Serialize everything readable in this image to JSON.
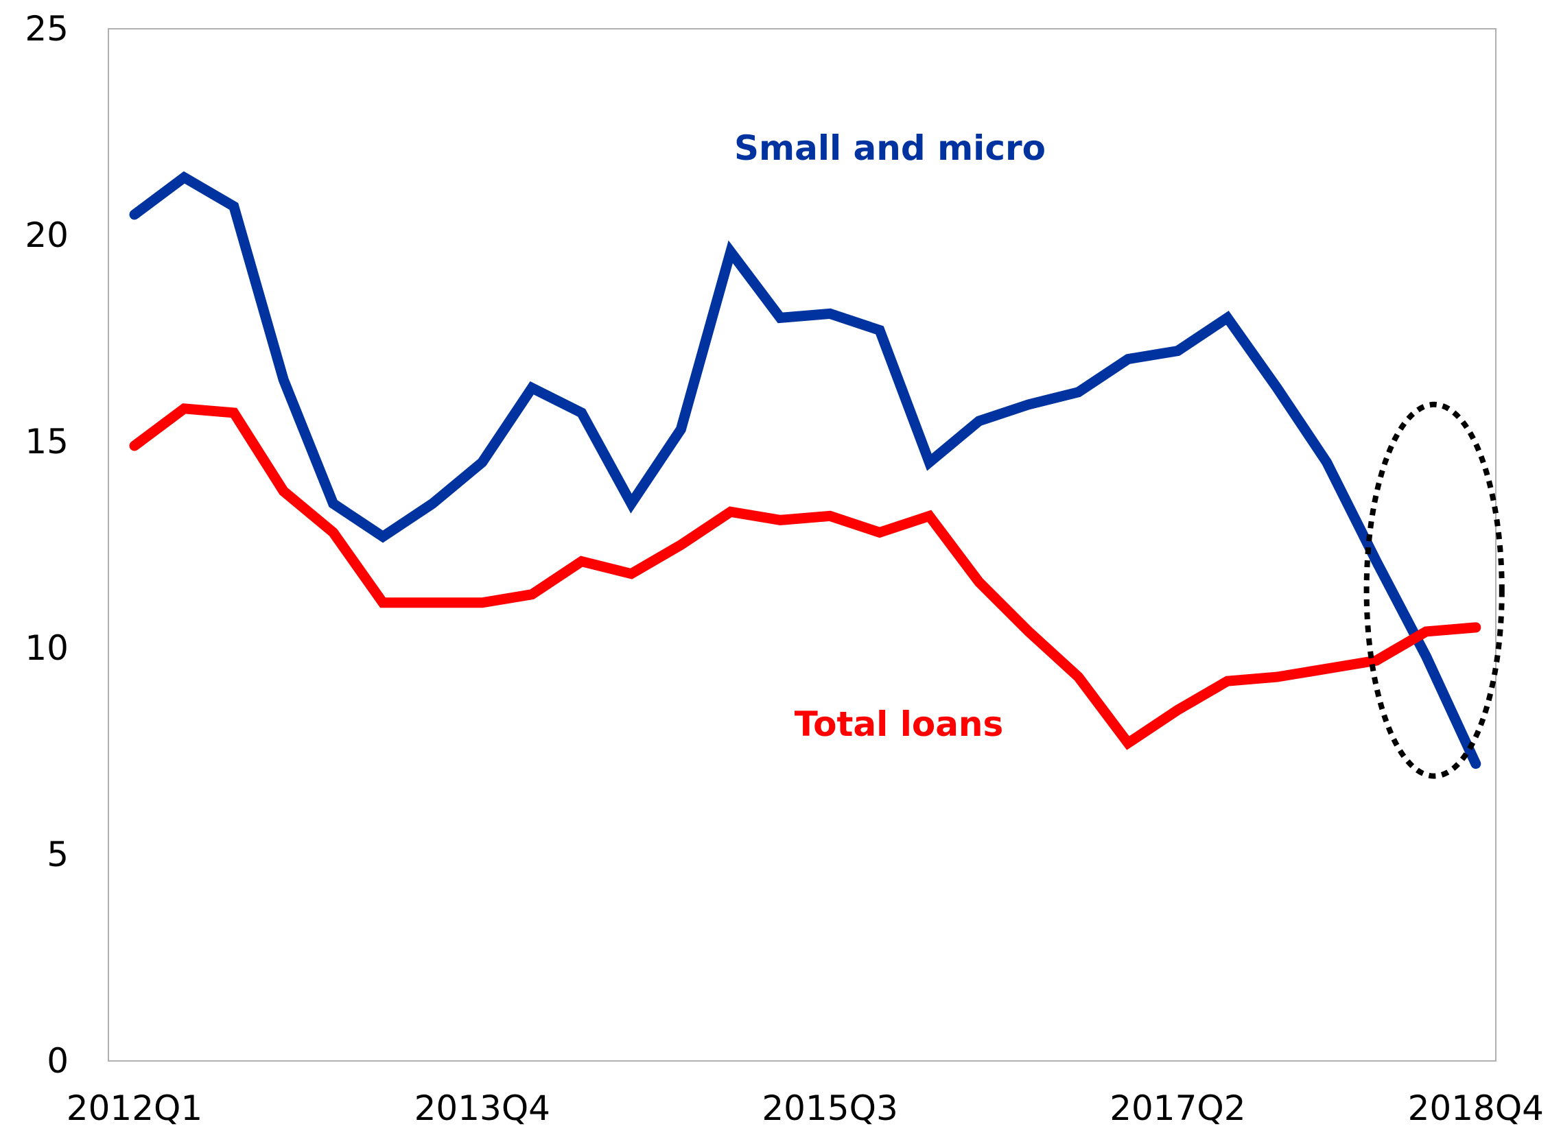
{
  "chart_data": {
    "type": "line",
    "title": "",
    "xlabel": "",
    "ylabel": "",
    "ylim": [
      0,
      25
    ],
    "yticks": [
      0,
      5,
      10,
      15,
      20,
      25
    ],
    "x": [
      "2012Q1",
      "2012Q2",
      "2012Q3",
      "2012Q4",
      "2013Q1",
      "2013Q2",
      "2013Q3",
      "2013Q4",
      "2014Q1",
      "2014Q2",
      "2014Q3",
      "2014Q4",
      "2015Q1",
      "2015Q2",
      "2015Q3",
      "2015Q4",
      "2016Q1",
      "2016Q2",
      "2016Q3",
      "2016Q4",
      "2017Q1",
      "2017Q2",
      "2017Q3",
      "2017Q4",
      "2018Q1",
      "2018Q2",
      "2018Q3",
      "2018Q4"
    ],
    "xtick_labels": [
      "2012Q1",
      "2013Q4",
      "2015Q3",
      "2017Q2",
      "2018Q4"
    ],
    "grid": false,
    "series": [
      {
        "name": "Small and micro",
        "color": "#0033a0",
        "values": [
          20.5,
          21.4,
          20.7,
          16.5,
          13.5,
          12.7,
          13.5,
          14.5,
          16.3,
          15.7,
          13.5,
          15.3,
          19.6,
          18.0,
          18.1,
          17.7,
          14.5,
          15.5,
          15.9,
          16.2,
          17.0,
          17.2,
          18.0,
          16.3,
          14.5,
          12.1,
          9.8,
          7.2
        ]
      },
      {
        "name": "Total loans",
        "color": "#ff0000",
        "values": [
          14.9,
          15.8,
          15.7,
          13.8,
          12.8,
          11.1,
          11.1,
          11.1,
          11.3,
          12.1,
          11.8,
          12.5,
          13.3,
          13.1,
          13.2,
          12.8,
          13.2,
          11.6,
          10.4,
          9.3,
          7.7,
          8.5,
          9.2,
          9.3,
          9.5,
          9.7,
          10.4,
          10.5
        ]
      }
    ],
    "annotation": {
      "type": "dotted-ellipse",
      "x_range": [
        "2018Q1",
        "2018Q4"
      ],
      "y_range": [
        6.9,
        15.9
      ],
      "color": "#000000"
    }
  }
}
